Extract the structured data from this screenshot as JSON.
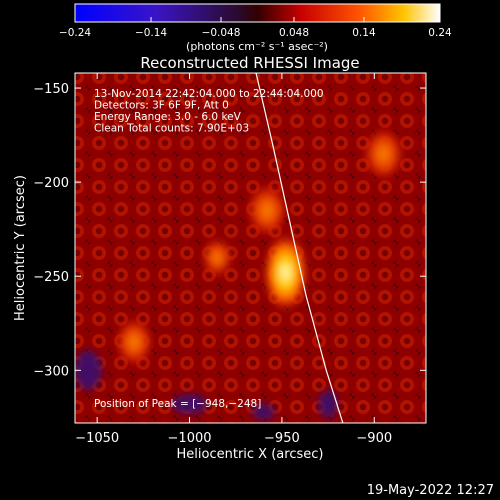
{
  "chart_data": {
    "type": "heatmap",
    "title": "Reconstructed RHESSI Image",
    "xlabel": "Heliocentric X (arcsec)",
    "ylabel": "Heliocentric Y (arcsec)",
    "xlim": [
      -1062,
      -872
    ],
    "ylim": [
      -328,
      -142
    ],
    "x_ticks": [
      -1050,
      -1000,
      -950,
      -900
    ],
    "y_ticks": [
      -150,
      -200,
      -250,
      -300
    ],
    "x_tick_labels": [
      "−1050",
      "−1000",
      "−950",
      "−900"
    ],
    "y_tick_labels": [
      "−150",
      "−200",
      "−250",
      "−300"
    ],
    "annotations": [
      "13-Nov-2014 22:42:04.000 to 22:44:04.000",
      "Detectors: 3F 6F 9F, Att 0",
      "Energy Range: 3.0 - 6.0 keV",
      "Clean     Total counts: 7.90E+03"
    ],
    "peak": {
      "x": -948,
      "y": -248
    },
    "peak_label": "Position of Peak = [−948,−248]",
    "colorbar": {
      "range": [
        -0.24,
        0.24
      ],
      "tick_labels": [
        "−0.24",
        "−0.14",
        "−0.048",
        "0.048",
        "0.14",
        "0.24"
      ],
      "tick_values": [
        -0.24,
        -0.14,
        -0.048,
        0.048,
        0.14,
        0.24
      ],
      "unit_label": "(photons cm⁻² s⁻¹ asec⁻²)",
      "colors": [
        "#0000ff",
        "#5a1aa8",
        "#2a0000",
        "#cc0000",
        "#ff6600",
        "#ffcc00",
        "#ffffff"
      ]
    },
    "limb_curve": [
      [
        -964,
        -142
      ],
      [
        -955,
        -180
      ],
      [
        -946,
        -220
      ],
      [
        -937,
        -260
      ],
      [
        -926,
        -300
      ],
      [
        -917,
        -328
      ]
    ],
    "bright_source": {
      "x": -948,
      "y": -248,
      "intensity": 0.24
    },
    "secondary_sources": [
      {
        "x": -958,
        "y": -215,
        "intensity": 0.12
      },
      {
        "x": -1030,
        "y": -285,
        "intensity": 0.1
      },
      {
        "x": -895,
        "y": -185,
        "intensity": 0.12
      },
      {
        "x": -985,
        "y": -240,
        "intensity": 0.06
      }
    ],
    "grid": false
  },
  "footer": {
    "timestamp": "19-May-2022 12:27"
  }
}
